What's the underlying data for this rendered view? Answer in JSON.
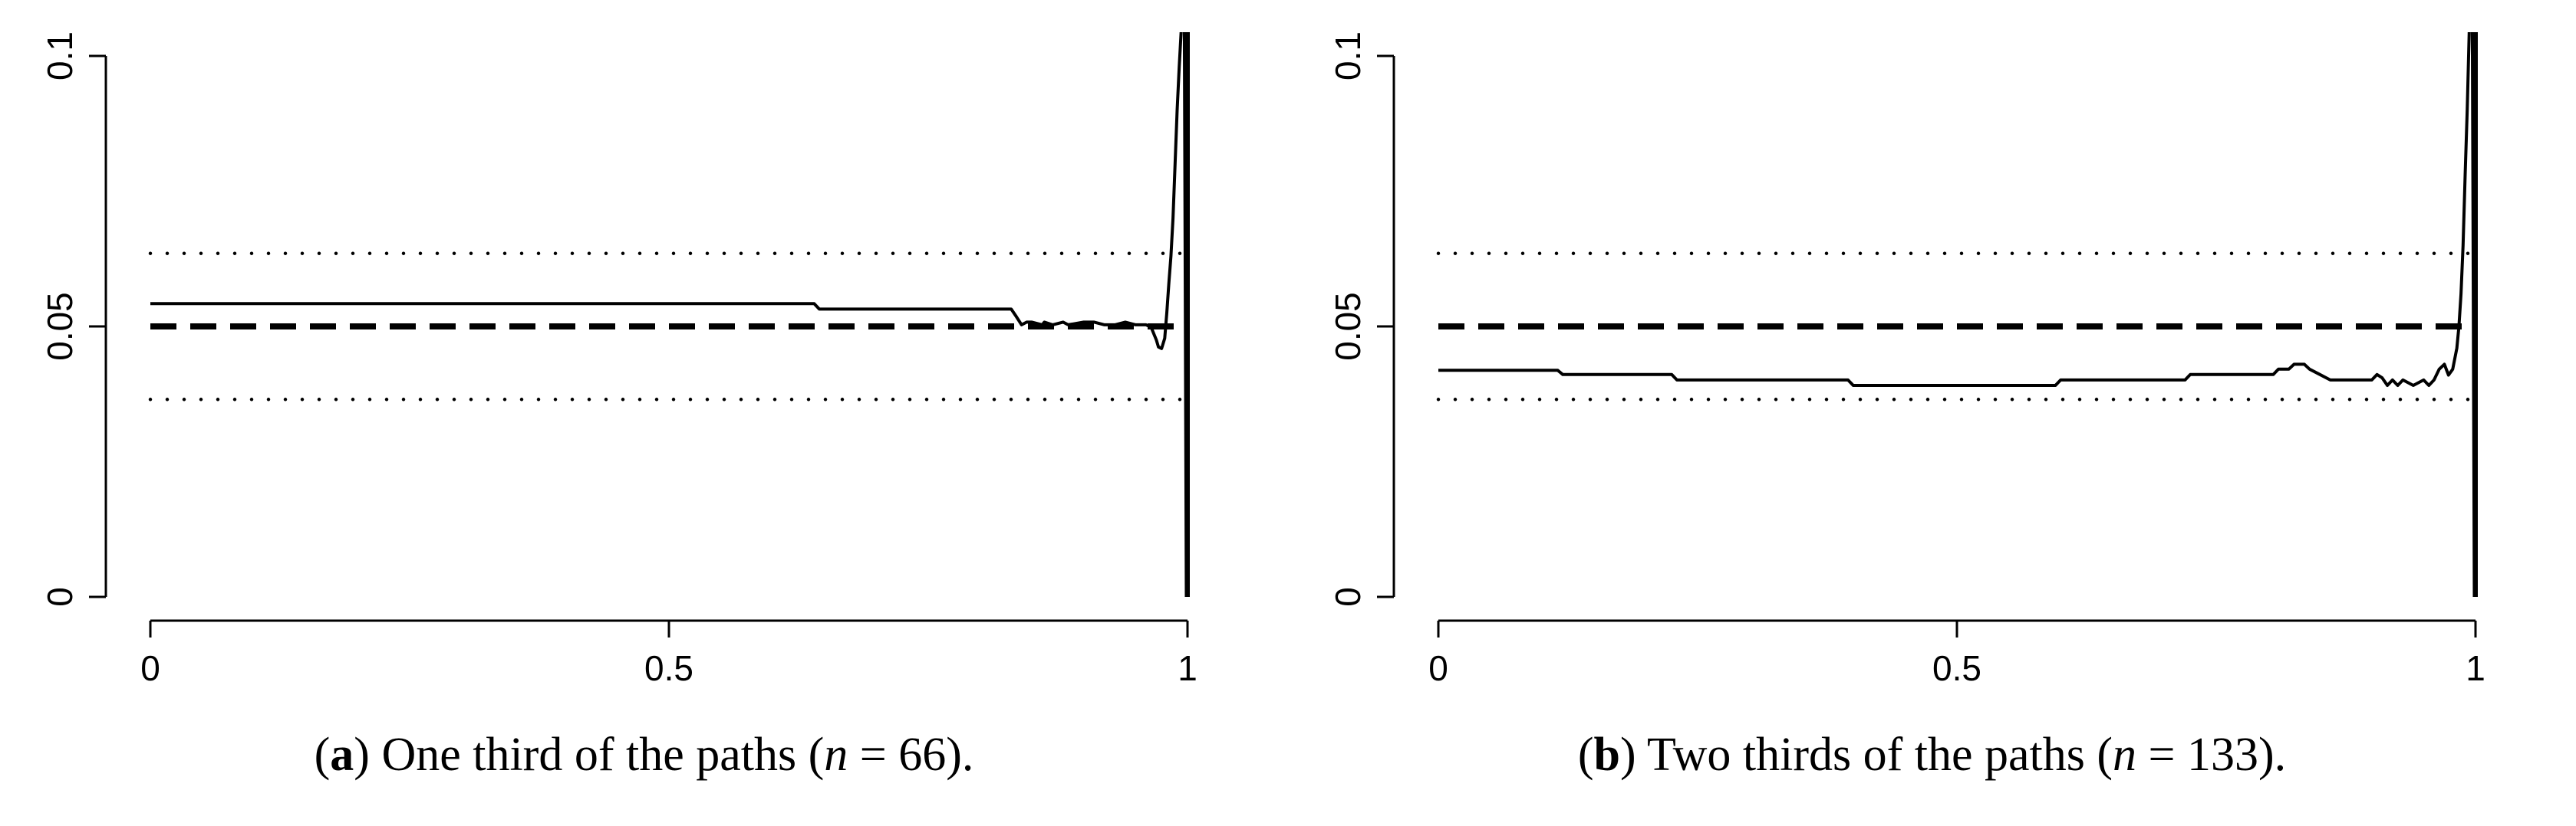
{
  "chart_data": [
    {
      "type": "line",
      "caption": {
        "letter": "a",
        "text_before": "One third of the paths (",
        "var": "n",
        "equals": " = ",
        "number": "66",
        "text_after": ")."
      },
      "xlim": [
        0,
        1
      ],
      "ylim": [
        0,
        0.1
      ],
      "x_ticks": [
        "0",
        "0.5",
        "1"
      ],
      "y_ticks": [
        "0",
        "0.05",
        "0.1"
      ],
      "reference_lines": [
        {
          "name": "nominal",
          "y": 0.05,
          "style": "dashed"
        },
        {
          "name": "upper band",
          "y": 0.0635,
          "style": "dotted"
        },
        {
          "name": "lower band",
          "y": 0.0365,
          "style": "dotted"
        }
      ],
      "series": [
        {
          "style": "solid",
          "x": [
            0,
            0.64,
            0.645,
            0.83,
            0.835,
            0.84,
            0.845,
            0.85,
            0.86,
            0.862,
            0.87,
            0.88,
            0.885,
            0.9,
            0.91,
            0.92,
            0.93,
            0.94,
            0.95,
            0.96,
            0.965,
            0.97,
            0.972,
            0.975,
            0.978,
            0.98,
            0.982,
            0.984,
            0.986,
            0.988,
            0.99,
            0.992,
            0.994,
            0.997,
            0.999
          ],
          "y": [
            0.0542,
            0.0542,
            0.0532,
            0.0532,
            0.0518,
            0.0503,
            0.0508,
            0.0508,
            0.0503,
            0.0508,
            0.0503,
            0.0508,
            0.0503,
            0.0508,
            0.0508,
            0.0503,
            0.0503,
            0.0508,
            0.0503,
            0.0503,
            0.0498,
            0.0475,
            0.0462,
            0.0459,
            0.0478,
            0.0525,
            0.058,
            0.063,
            0.07,
            0.08,
            0.09,
            0.098,
            0.105,
            0.105,
            -0.005
          ]
        }
      ]
    },
    {
      "type": "line",
      "caption": {
        "letter": "b",
        "text_before": "Two thirds of the paths (",
        "var": "n",
        "equals": " = ",
        "number": "133",
        "text_after": ")."
      },
      "xlim": [
        0,
        1
      ],
      "ylim": [
        0,
        0.1
      ],
      "x_ticks": [
        "0",
        "0.5",
        "1"
      ],
      "y_ticks": [
        "0",
        "0.05",
        "0.1"
      ],
      "reference_lines": [
        {
          "name": "nominal",
          "y": 0.05,
          "style": "dashed"
        },
        {
          "name": "upper band",
          "y": 0.0635,
          "style": "dotted"
        },
        {
          "name": "lower band",
          "y": 0.0365,
          "style": "dotted"
        }
      ],
      "series": [
        {
          "style": "solid",
          "x": [
            0,
            0.115,
            0.12,
            0.225,
            0.23,
            0.395,
            0.4,
            0.595,
            0.6,
            0.72,
            0.725,
            0.805,
            0.81,
            0.82,
            0.825,
            0.835,
            0.84,
            0.85,
            0.86,
            0.9,
            0.905,
            0.91,
            0.915,
            0.92,
            0.925,
            0.93,
            0.94,
            0.95,
            0.955,
            0.96,
            0.965,
            0.97,
            0.974,
            0.978,
            0.982,
            0.984,
            0.986,
            0.988,
            0.99,
            0.992,
            0.994,
            0.997,
            0.999
          ],
          "y": [
            0.0419,
            0.0419,
            0.0411,
            0.0411,
            0.0401,
            0.0401,
            0.0391,
            0.0391,
            0.0401,
            0.0401,
            0.0411,
            0.0411,
            0.0421,
            0.0421,
            0.043,
            0.043,
            0.0421,
            0.0411,
            0.0401,
            0.0401,
            0.0411,
            0.0405,
            0.0391,
            0.0401,
            0.0391,
            0.0401,
            0.0391,
            0.0401,
            0.0391,
            0.0401,
            0.0421,
            0.043,
            0.041,
            0.0421,
            0.046,
            0.05,
            0.056,
            0.065,
            0.078,
            0.09,
            0.105,
            0.105,
            -0.005
          ]
        }
      ]
    }
  ]
}
